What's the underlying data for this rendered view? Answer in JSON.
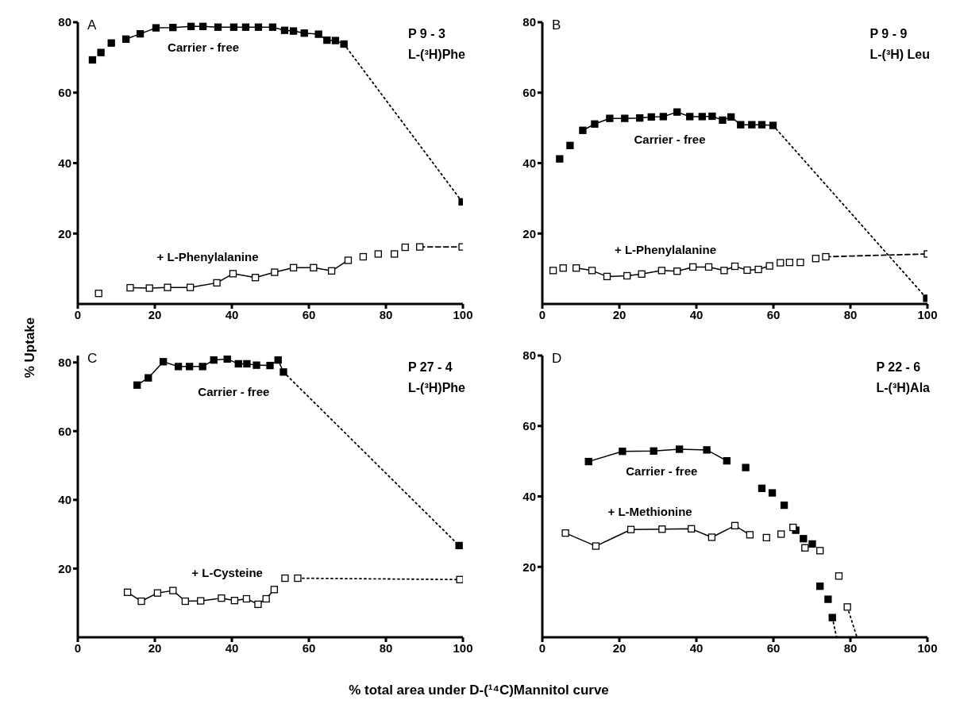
{
  "chart_data": [
    {
      "type": "scatter",
      "title": "A",
      "ylabel": "% Uptake",
      "annotations": [
        "P 9 - 3",
        "L-(³H)Phe"
      ],
      "xlim": [
        0,
        100
      ],
      "xticks": [
        0,
        20,
        40,
        60,
        80,
        100
      ],
      "ylim": [
        0,
        80
      ],
      "yticks": [
        20,
        40,
        60,
        80
      ],
      "series": [
        {
          "name": "Carrier - free",
          "type": "scatter",
          "marker": "square",
          "color": "#000000",
          "x": [
            3.8,
            6.0,
            8.7,
            12.5,
            16.2,
            20.3,
            24.7,
            29.4,
            32.5,
            36.4,
            40.5,
            43.6,
            46.9,
            50.6,
            53.7,
            56.0,
            58.8,
            62.5,
            64.7,
            66.9,
            69.1,
            99.8
          ],
          "values": [
            69.3,
            71.4,
            74.1,
            75.2,
            76.7,
            78.4,
            78.5,
            78.8,
            78.8,
            78.6,
            78.6,
            78.6,
            78.6,
            78.6,
            77.7,
            77.5,
            76.9,
            76.6,
            74.9,
            74.8,
            73.8,
            29.0
          ]
        },
        {
          "type": "line",
          "marker": "none",
          "line_style": "solid",
          "color": "#000000",
          "x": [
            12.5,
            16.2,
            20.3,
            24.7,
            29.4,
            32.5,
            36.4,
            40.5,
            43.6,
            46.9,
            50.6,
            53.7,
            56.0,
            58.8,
            62.5,
            64.7,
            66.9,
            69.1
          ],
          "values": [
            75.2,
            76.7,
            78.4,
            78.5,
            78.8,
            78.8,
            78.6,
            78.6,
            78.6,
            78.6,
            78.6,
            77.7,
            77.5,
            76.9,
            76.6,
            74.9,
            74.8,
            73.8
          ]
        },
        {
          "type": "line",
          "marker": "none",
          "line_style": "dotted",
          "color": "#000000",
          "x": [
            69.1,
            99.8
          ],
          "values": [
            73.8,
            29.0
          ]
        },
        {
          "name": "+ L-Phenylalanine",
          "type": "scatter",
          "marker": "square",
          "color": "#ffffff",
          "x": [
            5.4,
            13.6,
            18.6,
            23.3,
            29.2,
            36.1,
            40.3,
            46.1,
            51.1,
            56.0,
            61.2,
            65.9,
            70.2,
            74.1,
            78.0,
            82.2,
            85.0,
            88.8,
            99.8
          ],
          "values": [
            3.0,
            4.6,
            4.5,
            4.7,
            4.7,
            6.0,
            8.6,
            7.5,
            9.0,
            10.3,
            10.3,
            9.4,
            12.4,
            13.4,
            14.2,
            14.2,
            16.1,
            16.2,
            16.2
          ]
        },
        {
          "type": "line",
          "marker": "none",
          "line_style": "solid",
          "color": "#000000",
          "x": [
            13.6,
            18.6,
            23.3,
            29.2,
            36.1,
            40.3,
            46.1,
            51.1,
            56.0,
            61.2,
            65.9,
            70.2
          ],
          "values": [
            4.6,
            4.5,
            4.7,
            4.7,
            6.0,
            8.6,
            7.5,
            9.0,
            10.3,
            10.3,
            9.4,
            12.4
          ]
        },
        {
          "type": "line",
          "marker": "none",
          "line_style": "dashed",
          "color": "#000000",
          "x": [
            88.8,
            99.8
          ],
          "values": [
            16.2,
            16.2
          ]
        }
      ]
    },
    {
      "type": "scatter",
      "title": "B",
      "annotations": [
        "P 9 - 9",
        "L-(³H) Leu"
      ],
      "xlim": [
        0,
        100
      ],
      "xticks": [
        0,
        20,
        40,
        60,
        80,
        100
      ],
      "ylim": [
        0,
        80
      ],
      "yticks": [
        20,
        40,
        60,
        80
      ],
      "series": [
        {
          "name": "Carrier - free",
          "type": "scatter",
          "marker": "square",
          "color": "#000000",
          "x": [
            4.5,
            7.2,
            10.5,
            13.6,
            17.5,
            21.4,
            25.3,
            28.3,
            31.4,
            35.0,
            38.3,
            41.5,
            44.1,
            46.8,
            49.0,
            51.5,
            54.4,
            57.0,
            59.9,
            99.8
          ],
          "values": [
            41.2,
            45.0,
            49.3,
            51.1,
            52.7,
            52.7,
            52.8,
            53.1,
            53.2,
            54.5,
            53.2,
            53.2,
            53.3,
            52.2,
            53.1,
            50.9,
            50.9,
            50.9,
            50.7,
            1.6
          ]
        },
        {
          "type": "line",
          "marker": "none",
          "line_style": "solid",
          "color": "#000000",
          "x": [
            10.5,
            13.6,
            17.5,
            21.4,
            25.3,
            28.3,
            31.4,
            35.0,
            38.3,
            41.5,
            44.1,
            46.8,
            49.0,
            51.5,
            54.4,
            57.0,
            59.9
          ],
          "values": [
            49.3,
            51.1,
            52.7,
            52.7,
            52.8,
            53.1,
            53.2,
            54.5,
            53.2,
            53.2,
            53.3,
            52.2,
            53.1,
            50.9,
            50.9,
            50.9,
            50.7
          ]
        },
        {
          "type": "line",
          "marker": "none",
          "line_style": "dotted",
          "color": "#000000",
          "x": [
            59.9,
            99.8
          ],
          "values": [
            50.7,
            1.6
          ]
        },
        {
          "name": "+ L-Phenylalanine",
          "type": "scatter",
          "marker": "square",
          "color": "#ffffff",
          "x": [
            2.8,
            5.4,
            8.8,
            12.9,
            16.8,
            22.0,
            25.8,
            31.0,
            35.0,
            39.1,
            43.2,
            47.2,
            50.0,
            53.2,
            56.1,
            59.0,
            61.8,
            64.2,
            67.0,
            71.0,
            73.6,
            100
          ],
          "values": [
            9.5,
            10.2,
            10.2,
            9.5,
            7.8,
            8.0,
            8.5,
            9.5,
            9.3,
            10.5,
            10.5,
            9.5,
            10.7,
            9.6,
            9.8,
            10.8,
            11.7,
            11.8,
            11.8,
            12.9,
            13.4,
            14.2
          ]
        },
        {
          "type": "line",
          "marker": "none",
          "line_style": "solid",
          "color": "#000000",
          "x": [
            8.8,
            12.9,
            16.8,
            22.0,
            25.8,
            31.0,
            35.0,
            39.1,
            43.2,
            47.2,
            50.0,
            53.2,
            56.1,
            59.0
          ],
          "values": [
            10.2,
            9.5,
            7.8,
            8.0,
            8.5,
            9.5,
            9.3,
            10.5,
            10.5,
            9.5,
            10.7,
            9.6,
            9.8,
            10.8
          ]
        },
        {
          "type": "line",
          "marker": "none",
          "line_style": "dashed",
          "color": "#000000",
          "x": [
            73.6,
            100
          ],
          "values": [
            13.4,
            14.2
          ]
        }
      ]
    },
    {
      "type": "scatter",
      "title": "C",
      "xlabel": "% total area under D-(¹⁴C)Mannitol curve",
      "annotations": [
        "P 27 - 4",
        "L-(³H)Phe"
      ],
      "xlim": [
        0,
        100
      ],
      "xticks": [
        0,
        20,
        40,
        60,
        80,
        100
      ],
      "ylim": [
        0,
        82
      ],
      "yticks": [
        20,
        40,
        60,
        80
      ],
      "series": [
        {
          "name": "Carrier - free",
          "type": "scatter",
          "marker": "square",
          "color": "#000000",
          "x": [
            15.4,
            18.3,
            22.2,
            26.1,
            29.0,
            32.4,
            35.3,
            38.8,
            41.7,
            43.9,
            46.4,
            49.9,
            52.0,
            53.4,
            99.0
          ],
          "values": [
            73.4,
            75.5,
            80.2,
            78.8,
            78.8,
            78.8,
            80.7,
            81.0,
            79.6,
            79.6,
            79.2,
            79.1,
            80.7,
            77.2,
            26.7
          ]
        },
        {
          "type": "line",
          "marker": "none",
          "line_style": "solid",
          "color": "#000000",
          "x": [
            15.4,
            18.3,
            22.2,
            26.1,
            29.0,
            32.4,
            35.3,
            38.8,
            41.7,
            43.9,
            46.4,
            49.9,
            52.0,
            53.4
          ],
          "values": [
            73.4,
            75.5,
            80.2,
            78.8,
            78.8,
            78.8,
            80.7,
            81.0,
            79.6,
            79.6,
            79.2,
            79.1,
            80.7,
            77.2
          ]
        },
        {
          "type": "line",
          "marker": "none",
          "line_style": "dotted",
          "color": "#000000",
          "x": [
            53.4,
            99.0
          ],
          "values": [
            77.2,
            26.7
          ]
        },
        {
          "name": "+ L-Cysteine",
          "type": "scatter",
          "marker": "square",
          "color": "#ffffff",
          "x": [
            12.9,
            16.5,
            20.7,
            24.7,
            27.9,
            31.9,
            37.3,
            40.7,
            43.8,
            46.8,
            48.9,
            51.0,
            53.8,
            57.1,
            99.2
          ],
          "values": [
            13.1,
            10.5,
            12.9,
            13.6,
            10.5,
            10.6,
            11.4,
            10.7,
            11.2,
            9.6,
            11.2,
            13.9,
            17.2,
            17.2,
            16.8
          ]
        },
        {
          "type": "line",
          "marker": "none",
          "line_style": "solid",
          "color": "#000000",
          "x": [
            12.9,
            16.5,
            20.7,
            24.7,
            27.9,
            31.9,
            37.3,
            40.7,
            43.8,
            46.8,
            48.9,
            51.0
          ],
          "values": [
            13.1,
            10.5,
            12.9,
            13.6,
            10.5,
            10.6,
            11.4,
            10.7,
            11.2,
            9.6,
            11.2,
            13.9
          ]
        },
        {
          "type": "line",
          "marker": "none",
          "line_style": "dotted",
          "color": "#000000",
          "x": [
            57.1,
            99.2
          ],
          "values": [
            17.2,
            16.8
          ]
        }
      ]
    },
    {
      "type": "scatter",
      "title": "D",
      "annotations": [
        "P 22 - 6",
        "L-(³H)Ala"
      ],
      "xlim": [
        0,
        100
      ],
      "xticks": [
        0,
        20,
        40,
        60,
        80,
        100
      ],
      "ylim": [
        0,
        80
      ],
      "yticks": [
        20,
        40,
        60,
        80
      ],
      "series": [
        {
          "name": "Carrier - free",
          "type": "scatter",
          "marker": "square",
          "color": "#000000",
          "x": [
            12.0,
            20.8,
            28.9,
            35.6,
            42.7,
            47.9,
            52.8,
            57.0,
            59.7,
            62.8,
            65.8,
            67.8,
            70.1,
            72.1,
            74.2,
            75.3
          ],
          "values": [
            49.9,
            52.8,
            52.9,
            53.4,
            53.2,
            50.1,
            48.2,
            42.3,
            41.0,
            37.5,
            30.4,
            28.0,
            26.5,
            14.5,
            10.8,
            5.6
          ]
        },
        {
          "type": "line",
          "marker": "none",
          "line_style": "solid",
          "color": "#000000",
          "x": [
            12.0,
            20.8,
            28.9,
            35.6,
            42.7,
            47.9
          ],
          "values": [
            49.9,
            52.8,
            52.9,
            53.4,
            53.2,
            50.1
          ]
        },
        {
          "type": "line",
          "marker": "none",
          "line_style": "dotted",
          "color": "#000000",
          "x": [
            75.3,
            76.4
          ],
          "values": [
            5.6,
            0
          ]
        },
        {
          "name": "+ L-Methionine",
          "type": "scatter",
          "marker": "square",
          "color": "#ffffff",
          "x": [
            6.0,
            13.9,
            23.0,
            31.1,
            38.7,
            44.0,
            50.0,
            53.9,
            58.2,
            62.0,
            65.1,
            68.2,
            72.1,
            77.0,
            79.2
          ],
          "values": [
            29.6,
            25.9,
            30.6,
            30.7,
            30.8,
            28.4,
            31.7,
            29.1,
            28.3,
            29.3,
            31.2,
            25.4,
            24.6,
            17.4,
            8.6
          ]
        },
        {
          "type": "line",
          "marker": "none",
          "line_style": "solid",
          "color": "#000000",
          "x": [
            6.0,
            13.9,
            23.0,
            31.1,
            38.7,
            44.0,
            50.0,
            53.9
          ],
          "values": [
            29.6,
            25.9,
            30.6,
            30.7,
            30.8,
            28.4,
            31.7,
            29.1
          ]
        },
        {
          "type": "line",
          "marker": "none",
          "line_style": "dotted",
          "color": "#000000",
          "x": [
            79.2,
            81.7
          ],
          "values": [
            8.6,
            0
          ]
        }
      ]
    }
  ]
}
